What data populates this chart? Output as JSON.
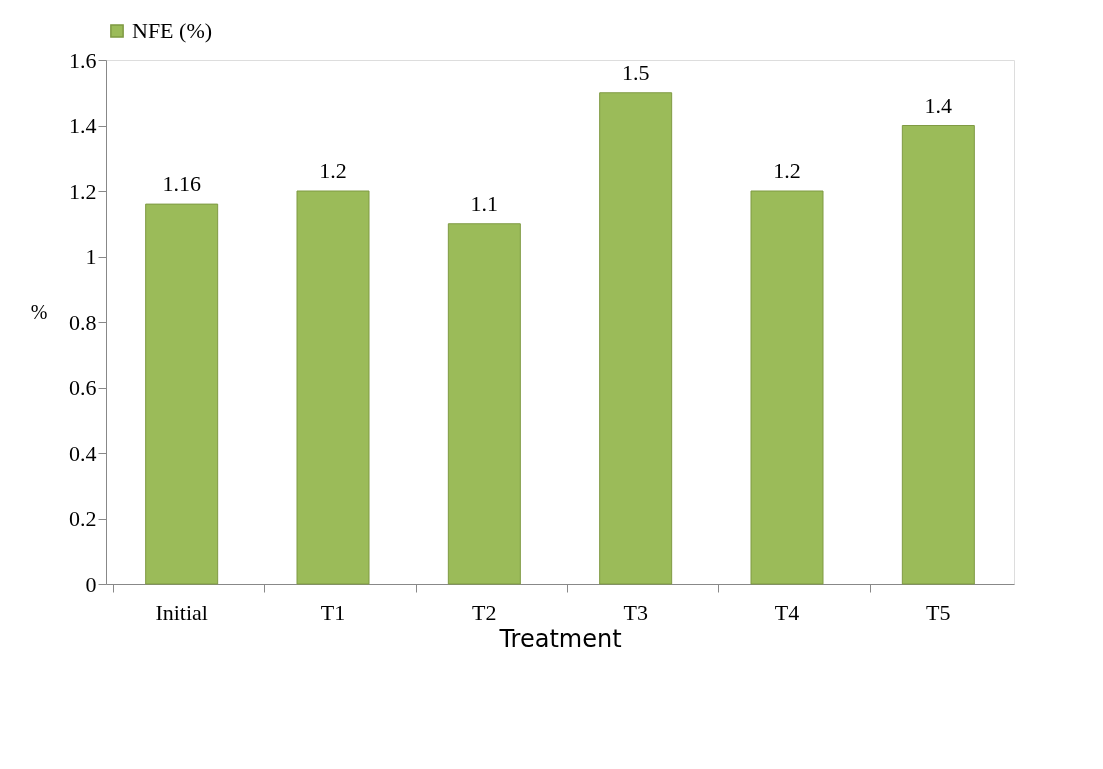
{
  "chart_data": {
    "type": "bar",
    "xlabel": "Treatment",
    "ylabel": "%",
    "categories": [
      "Initial",
      "T1",
      "T2",
      "T3",
      "T4",
      "T5"
    ],
    "series": [
      {
        "name": "NFE (%)",
        "color": "#9bbb59",
        "values": [
          1.16,
          1.2,
          1.1,
          1.5,
          1.2,
          1.4
        ]
      }
    ],
    "ylim": [
      0,
      1.6
    ],
    "yticks": [
      0,
      0.2,
      0.4,
      0.6,
      0.8,
      1,
      1.2,
      1.4,
      1.6
    ],
    "data_labels": true,
    "legend": "top",
    "grid": false
  }
}
